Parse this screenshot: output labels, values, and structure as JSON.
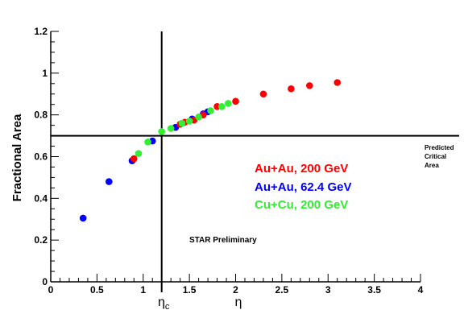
{
  "chart_data": {
    "type": "scatter",
    "title": "",
    "xlabel": "η",
    "ylabel": "Fractional Area",
    "xlim": [
      0,
      4
    ],
    "ylim": [
      0,
      1.2
    ],
    "xticks": [
      "0",
      "0.5",
      "1",
      "1.5",
      "2",
      "2.5",
      "3",
      "3.5",
      "4"
    ],
    "yticks": [
      "0",
      "0.2",
      "0.4",
      "0.6",
      "0.8",
      "1",
      "1.2"
    ],
    "grid": false,
    "legend_position": "center-right",
    "series": [
      {
        "name": "Au+Au, 200 GeV",
        "color": "#ff0000",
        "points": [
          [
            0.9,
            0.59
          ],
          [
            1.4,
            0.755
          ],
          [
            1.45,
            0.765
          ],
          [
            1.55,
            0.775
          ],
          [
            1.65,
            0.8
          ],
          [
            1.8,
            0.84
          ],
          [
            2.0,
            0.865
          ],
          [
            2.3,
            0.9
          ],
          [
            2.6,
            0.925
          ],
          [
            2.8,
            0.94
          ],
          [
            3.1,
            0.955
          ]
        ]
      },
      {
        "name": "Au+Au, 62.4 GeV",
        "color": "#0000ff",
        "points": [
          [
            0.35,
            0.305
          ],
          [
            0.63,
            0.48
          ],
          [
            0.88,
            0.58
          ],
          [
            1.1,
            0.675
          ],
          [
            1.35,
            0.74
          ],
          [
            1.53,
            0.78
          ],
          [
            1.65,
            0.805
          ],
          [
            1.7,
            0.815
          ]
        ]
      },
      {
        "name": "Cu+Cu, 200 GeV",
        "color": "#33ee33",
        "points": [
          [
            0.95,
            0.615
          ],
          [
            1.05,
            0.67
          ],
          [
            1.2,
            0.72
          ],
          [
            1.3,
            0.735
          ],
          [
            1.42,
            0.76
          ],
          [
            1.5,
            0.77
          ],
          [
            1.6,
            0.79
          ],
          [
            1.73,
            0.82
          ],
          [
            1.85,
            0.84
          ],
          [
            1.92,
            0.855
          ]
        ]
      }
    ],
    "reference_lines": {
      "eta_c": 1.2,
      "critical_area": 0.7
    },
    "annotations": {
      "predicted": "Predicted",
      "critical": "Critical",
      "area": "Area",
      "preliminary": "STAR Preliminary",
      "eta_c_base": "η",
      "eta_c_sub": "c"
    }
  }
}
